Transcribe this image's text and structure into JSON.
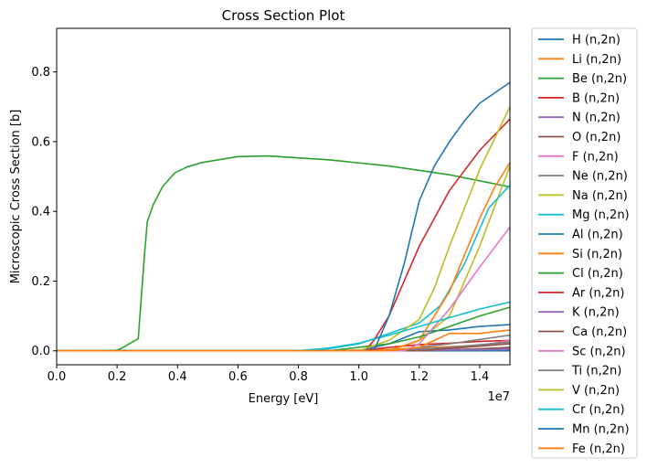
{
  "chart_data": {
    "type": "line",
    "title": "Cross Section Plot",
    "xlabel": "Energy [eV]",
    "ylabel": "Microscopic Cross Section [b]",
    "x_offset_label": "1e7",
    "xlim": [
      0,
      1.5
    ],
    "ylim": [
      -0.04,
      0.925
    ],
    "x_ticks": [
      0.0,
      0.2,
      0.4,
      0.6,
      0.8,
      1.0,
      1.2,
      1.4
    ],
    "x_tick_labels": [
      "0.0",
      "0.2",
      "0.4",
      "0.6",
      "0.8",
      "1.0",
      "1.2",
      "1.4"
    ],
    "y_ticks": [
      0.0,
      0.2,
      0.4,
      0.6,
      0.8
    ],
    "y_tick_labels": [
      "0.0",
      "0.2",
      "0.4",
      "0.6",
      "0.8"
    ],
    "grid": false,
    "legend_position": "outside-right",
    "series": [
      {
        "name": "H (n,2n)",
        "color": "#1f77b4",
        "x": [
          0,
          1.5
        ],
        "y": [
          0,
          0
        ]
      },
      {
        "name": "Li (n,2n)",
        "color": "#ff7f0e",
        "x": [
          0,
          0.9,
          1.1,
          1.3,
          1.5
        ],
        "y": [
          0,
          0,
          0.004,
          0.012,
          0.02
        ]
      },
      {
        "name": "Be (n,2n)",
        "color": "#2ca02c",
        "x": [
          0,
          0.19,
          0.21,
          0.24,
          0.27,
          0.29,
          0.3,
          0.32,
          0.35,
          0.39,
          0.43,
          0.48,
          0.6,
          0.7,
          0.9,
          1.1,
          1.3,
          1.5
        ],
        "y": [
          0,
          0,
          0.005,
          0.02,
          0.035,
          0.27,
          0.37,
          0.42,
          0.47,
          0.51,
          0.527,
          0.54,
          0.557,
          0.559,
          0.548,
          0.53,
          0.505,
          0.47
        ]
      },
      {
        "name": "B (n,2n)",
        "color": "#d62728",
        "x": [
          0,
          1.0,
          1.1,
          1.2,
          1.3,
          1.4,
          1.5
        ],
        "y": [
          0,
          0,
          0.01,
          0.018,
          0.022,
          0.027,
          0.03
        ]
      },
      {
        "name": "N (n,2n)",
        "color": "#9467bd",
        "x": [
          0,
          1.1,
          1.3,
          1.5
        ],
        "y": [
          0,
          0,
          0.003,
          0.007
        ]
      },
      {
        "name": "O (n,2n)",
        "color": "#8c564b",
        "x": [
          0,
          1.2,
          1.35,
          1.5
        ],
        "y": [
          0,
          0,
          0.004,
          0.01
        ]
      },
      {
        "name": "F (n,2n)",
        "color": "#e377c2",
        "x": [
          0,
          1.1,
          1.3,
          1.4,
          1.5
        ],
        "y": [
          0,
          0,
          0.005,
          0.015,
          0.03
        ]
      },
      {
        "name": "Ne (n,2n)",
        "color": "#7f7f7f",
        "x": [
          0,
          1.1,
          1.3,
          1.5
        ],
        "y": [
          0,
          0,
          0.01,
          0.025
        ]
      },
      {
        "name": "Na (n,2n)",
        "color": "#bcbd22",
        "x": [
          0,
          1.1,
          1.2,
          1.3,
          1.4,
          1.5
        ],
        "y": [
          0,
          0,
          0.03,
          0.1,
          0.3,
          0.53
        ]
      },
      {
        "name": "Mg (n,2n)",
        "color": "#17becf",
        "x": [
          0,
          0.8,
          0.9,
          1.0,
          1.1,
          1.2,
          1.27,
          1.35,
          1.43,
          1.5
        ],
        "y": [
          0,
          0,
          0.006,
          0.02,
          0.05,
          0.08,
          0.13,
          0.25,
          0.41,
          0.475
        ]
      },
      {
        "name": "Al (n,2n)",
        "color": "#1f77b4",
        "x": [
          0,
          1.0,
          1.1,
          1.2,
          1.3,
          1.4,
          1.5
        ],
        "y": [
          0,
          0,
          0.02,
          0.055,
          0.06,
          0.07,
          0.075
        ]
      },
      {
        "name": "Si (n,2n)",
        "color": "#ff7f0e",
        "x": [
          0,
          1.1,
          1.2,
          1.3,
          1.4,
          1.45,
          1.5
        ],
        "y": [
          0,
          0,
          0.03,
          0.17,
          0.38,
          0.47,
          0.54
        ]
      },
      {
        "name": "Cl (n,2n)",
        "color": "#2ca02c",
        "x": [
          0,
          0.9,
          1.0,
          1.1,
          1.2,
          1.3,
          1.4,
          1.5
        ],
        "y": [
          0,
          0,
          0.01,
          0.02,
          0.04,
          0.07,
          0.1,
          0.125
        ]
      },
      {
        "name": "Ar (n,2n)",
        "color": "#d62728",
        "x": [
          0,
          1.02,
          1.05,
          1.1,
          1.2,
          1.3,
          1.4,
          1.5
        ],
        "y": [
          0,
          0,
          0.03,
          0.1,
          0.3,
          0.46,
          0.575,
          0.665
        ]
      },
      {
        "name": "K (n,2n)",
        "color": "#9467bd",
        "x": [
          0,
          1.1,
          1.5
        ],
        "y": [
          0,
          0,
          0.004
        ]
      },
      {
        "name": "Ca (n,2n)",
        "color": "#8c564b",
        "x": [
          0,
          1.2,
          1.35,
          1.5
        ],
        "y": [
          0,
          0,
          0.01,
          0.02
        ]
      },
      {
        "name": "Sc (n,2n)",
        "color": "#e377c2",
        "x": [
          0,
          1.15,
          1.2,
          1.3,
          1.4,
          1.5
        ],
        "y": [
          0,
          0,
          0.02,
          0.12,
          0.24,
          0.355
        ]
      },
      {
        "name": "Ti (n,2n)",
        "color": "#7f7f7f",
        "x": [
          0,
          1.1,
          1.3,
          1.5
        ],
        "y": [
          0,
          0,
          0.02,
          0.045
        ]
      },
      {
        "name": "V (n,2n)",
        "color": "#bcbd22",
        "x": [
          0,
          1.0,
          1.1,
          1.2,
          1.25,
          1.3,
          1.4,
          1.5
        ],
        "y": [
          0,
          0,
          0.03,
          0.09,
          0.18,
          0.3,
          0.52,
          0.7
        ]
      },
      {
        "name": "Cr (n,2n)",
        "color": "#17becf",
        "x": [
          0,
          0.8,
          0.9,
          1.0,
          1.1,
          1.2,
          1.3,
          1.4,
          1.5
        ],
        "y": [
          0,
          0,
          0.008,
          0.022,
          0.045,
          0.07,
          0.095,
          0.12,
          0.14
        ]
      },
      {
        "name": "Mn (n,2n)",
        "color": "#1f77b4",
        "x": [
          0,
          1.05,
          1.1,
          1.15,
          1.2,
          1.25,
          1.3,
          1.35,
          1.4,
          1.45,
          1.5
        ],
        "y": [
          0,
          0,
          0.1,
          0.25,
          0.43,
          0.53,
          0.6,
          0.66,
          0.71,
          0.74,
          0.77
        ]
      },
      {
        "name": "Fe (n,2n)",
        "color": "#ff7f0e",
        "x": [
          0,
          1.1,
          1.2,
          1.3,
          1.4,
          1.5
        ],
        "y": [
          0,
          0,
          0.01,
          0.05,
          0.05,
          0.06
        ]
      }
    ]
  }
}
